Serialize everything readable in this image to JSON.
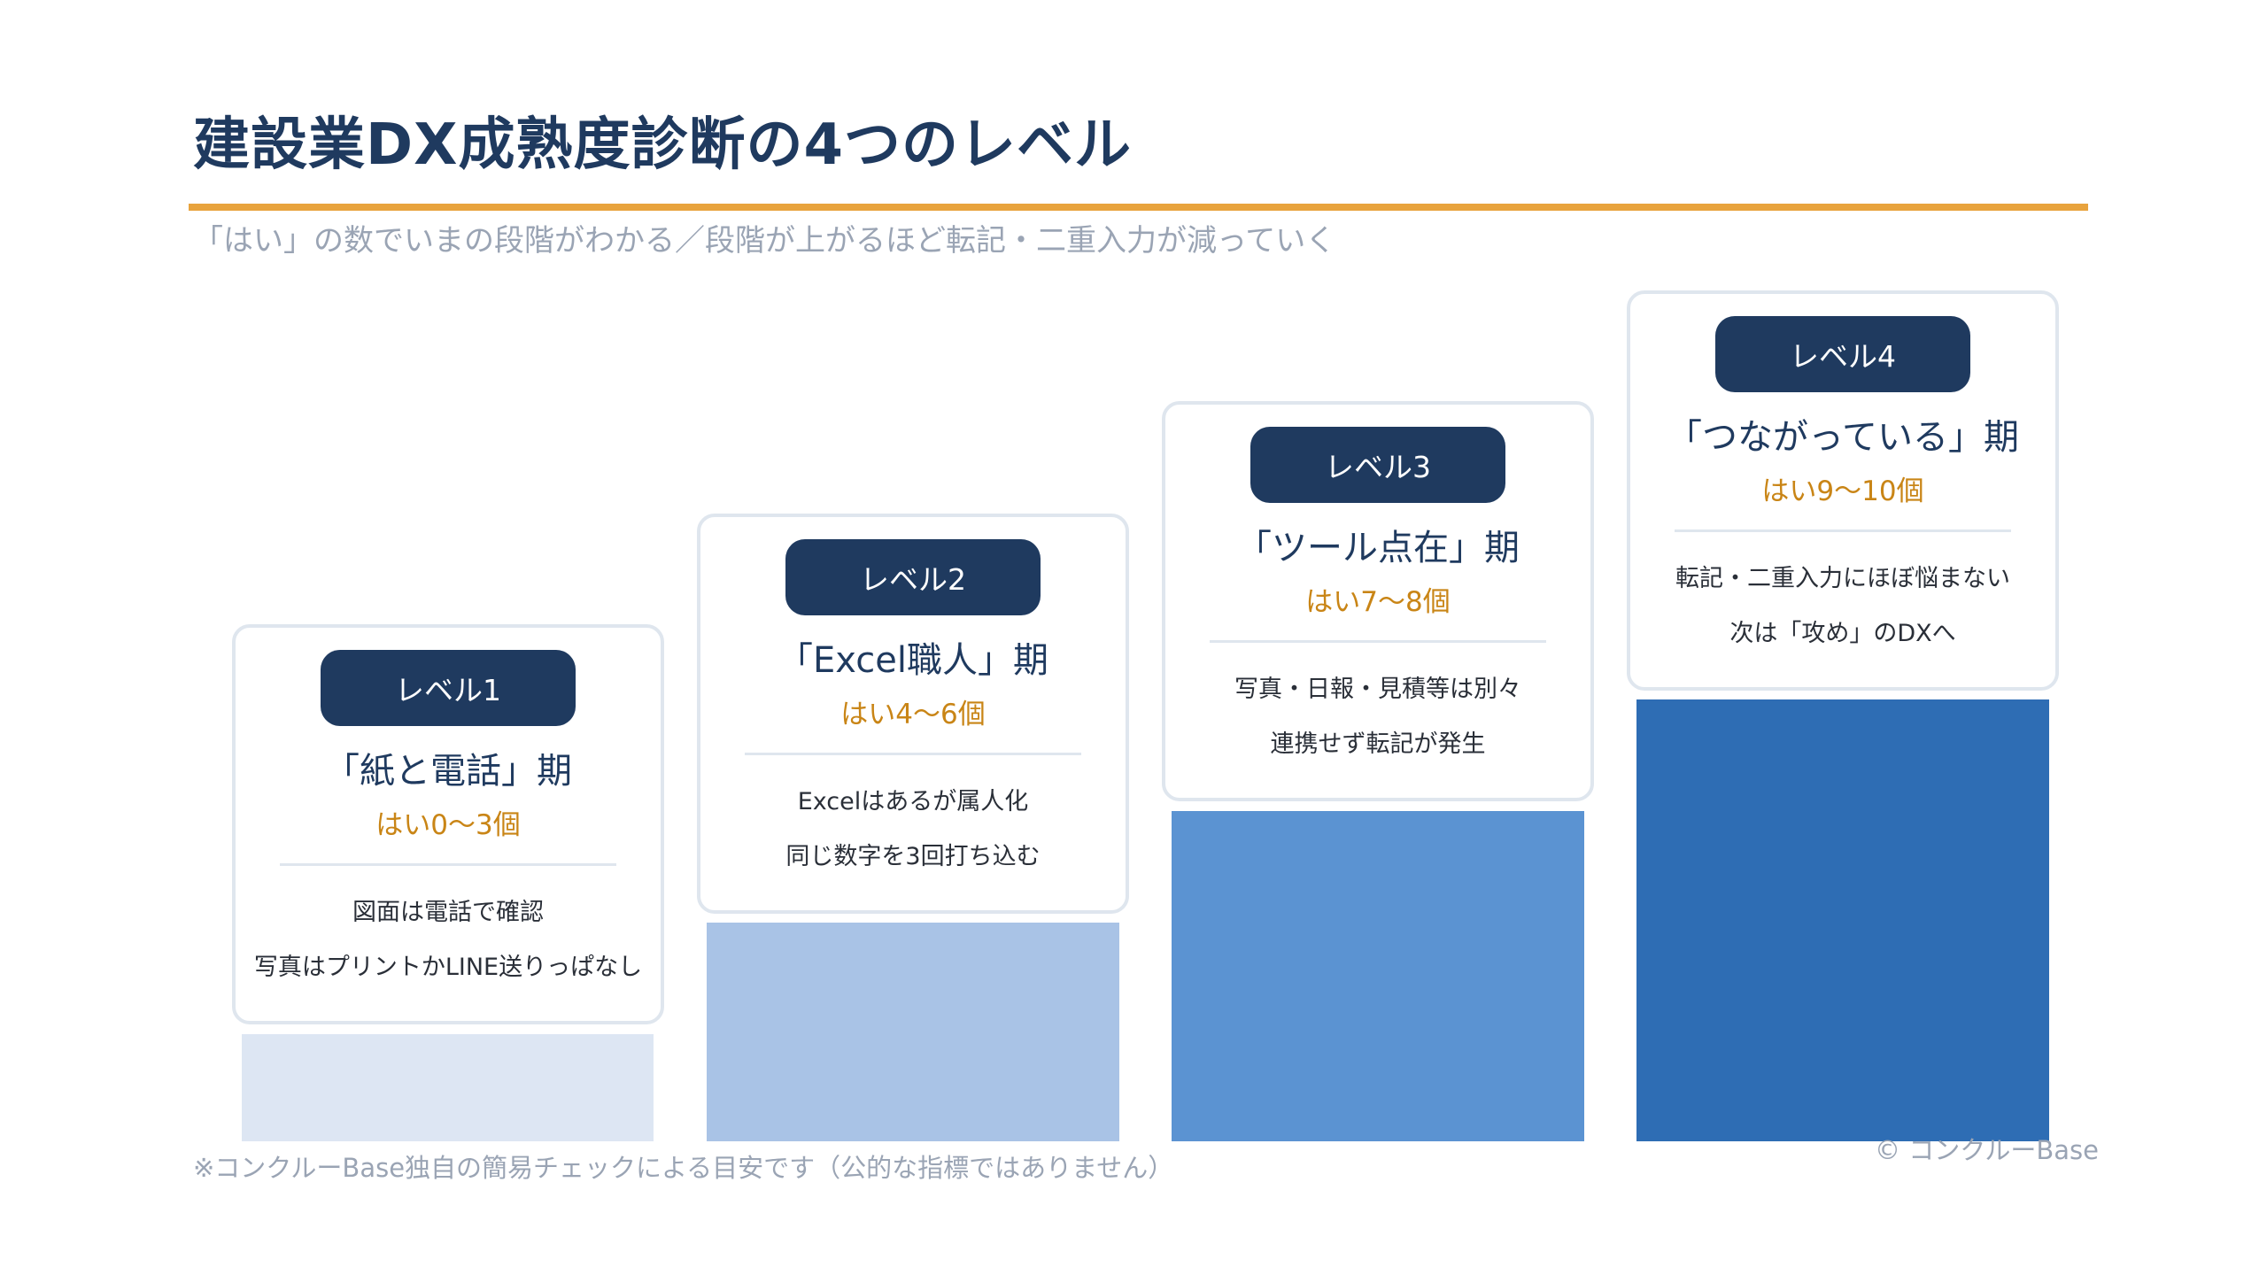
{
  "title": "建設業DX成熟度診断の4つのレベル",
  "subtitle": "「はい」の数でいまの段階がわかる／段階が上がるほど転記・二重入力が減っていく",
  "colors": {
    "title": "#1f3a5f",
    "accent_rule": "#e8a33d",
    "pill": "#1f3a5f",
    "count_text": "#c98516",
    "muted_text": "#9aa4b4",
    "card_border": "#dfe6ee"
  },
  "levels": [
    {
      "label": "レベル1",
      "stage": "「紙と電話」期",
      "count": "はい0〜3個",
      "desc1": "図面は電話で確認",
      "desc2": "写真はプリントかLINE送りっぱなし",
      "bar_color": "#dde6f3"
    },
    {
      "label": "レベル2",
      "stage": "「Excel職人」期",
      "count": "はい4〜6個",
      "desc1": "Excelはあるが属人化",
      "desc2": "同じ数字を3回打ち込む",
      "bar_color": "#a9c3e6"
    },
    {
      "label": "レベル3",
      "stage": "「ツール点在」期",
      "count": "はい7〜8個",
      "desc1": "写真・日報・見積等は別々",
      "desc2": "連携せず転記が発生",
      "bar_color": "#5b93d2"
    },
    {
      "label": "レベル4",
      "stage": "「つながっている」期",
      "count": "はい9〜10個",
      "desc1": "転記・二重入力にほぼ悩まない",
      "desc2": "次は「攻め」のDXへ",
      "bar_color": "#2e6db4"
    }
  ],
  "footnote": "※コンクルーBase独自の簡易チェックによる目安です（公的な指標ではありません）",
  "copyright": "© コンクルーBase"
}
